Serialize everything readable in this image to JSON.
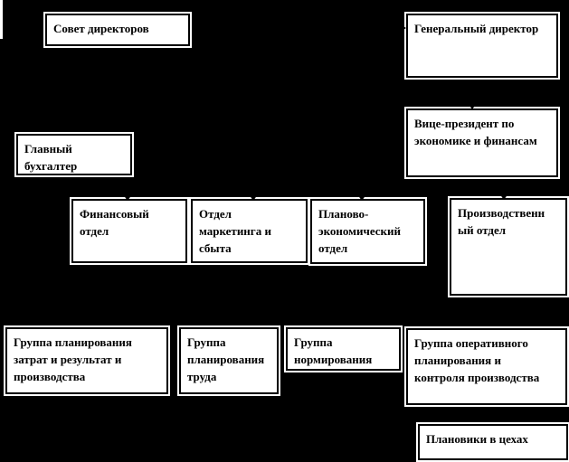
{
  "diagram": {
    "background_color": "#000000",
    "node_fill_color": "#ffffff",
    "node_border_color": "#000000",
    "text_color": "#000000",
    "nodes": [
      {
        "id": "board-of-directors",
        "label": "Совет директоров"
      },
      {
        "id": "general-director",
        "label": "Генеральный директор"
      },
      {
        "id": "chief-accountant",
        "label": "Главный\nбухгалтер"
      },
      {
        "id": "vice-president-economics-finance",
        "label": "Вице-президент по\nэкономике и финансам"
      },
      {
        "id": "finance-department",
        "label": "Финансовый\nотдел"
      },
      {
        "id": "marketing-sales-department",
        "label": "Отдел\nмаркетинга и\nсбыта"
      },
      {
        "id": "planning-economic-department",
        "label": "Планово-\nэкономический\nотдел"
      },
      {
        "id": "production-department",
        "label": "Производственн\nый отдел"
      },
      {
        "id": "cost-results-production-planning-group",
        "label": "Группа планирования\nзатрат и результат и\nпроизводства"
      },
      {
        "id": "labor-planning-group",
        "label": "Группа\nпланирования\nтруда"
      },
      {
        "id": "rationing-group",
        "label": "Группа\nнормирования"
      },
      {
        "id": "operational-planning-control-group",
        "label": "Группа оперативного\nпланирования и\nконтроля производства"
      },
      {
        "id": "shop-planners",
        "label": "Плановики в цехах"
      }
    ],
    "connectors": [
      {
        "to": "general-director",
        "arrow_direction": "right"
      },
      {
        "to": "vice-president-economics-finance",
        "arrow_direction": "down"
      },
      {
        "to": "finance-department",
        "arrow_direction": "down"
      },
      {
        "to": "marketing-sales-department",
        "arrow_direction": "down"
      },
      {
        "to": "planning-economic-department",
        "arrow_direction": "down"
      },
      {
        "to": "production-department",
        "arrow_direction": "down"
      }
    ]
  }
}
